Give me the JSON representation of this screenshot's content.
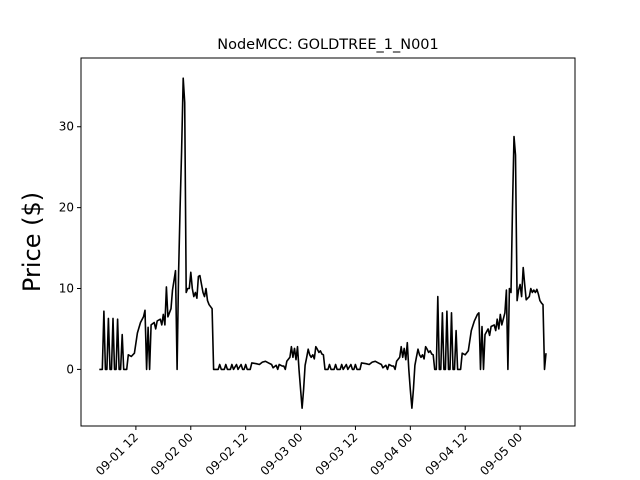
{
  "chart_data": {
    "type": "line",
    "title": "NodeMCC: GOLDTREE_1_N001",
    "xlabel": "",
    "ylabel": "Price ($)",
    "x_axis": {
      "type": "datetime",
      "range": [
        "2021-09-01 00:00",
        "2021-09-05 12:00"
      ],
      "ticks": [
        "2021-09-01 12:00",
        "2021-09-02 00:00",
        "2021-09-02 12:00",
        "2021-09-03 00:00",
        "2021-09-03 12:00",
        "2021-09-04 00:00",
        "2021-09-04 12:00",
        "2021-09-05 00:00"
      ],
      "tick_labels": [
        "09-01 12",
        "09-02 00",
        "09-02 12",
        "09-03 00",
        "09-03 12",
        "09-04 00",
        "09-04 12",
        "09-05 00"
      ],
      "tick_label_rotation": 45
    },
    "y_axis": {
      "range": [
        -7,
        38.5
      ],
      "ticks": [
        0,
        10,
        20,
        30
      ],
      "tick_labels": [
        "0",
        "10",
        "20",
        "30"
      ]
    },
    "grid": false,
    "legend": "none",
    "series": [
      {
        "color": "#000000",
        "points": [
          [
            "2021-09-01 04:00",
            0
          ],
          [
            "2021-09-01 04:20",
            0
          ],
          [
            "2021-09-01 04:40",
            0
          ],
          [
            "2021-09-01 05:00",
            7.2
          ],
          [
            "2021-09-01 05:20",
            0
          ],
          [
            "2021-09-01 05:40",
            0
          ],
          [
            "2021-09-01 06:00",
            6.3
          ],
          [
            "2021-09-01 06:20",
            0
          ],
          [
            "2021-09-01 06:40",
            0
          ],
          [
            "2021-09-01 07:00",
            6.3
          ],
          [
            "2021-09-01 07:20",
            0
          ],
          [
            "2021-09-01 07:40",
            0
          ],
          [
            "2021-09-01 08:00",
            6.2
          ],
          [
            "2021-09-01 08:20",
            0
          ],
          [
            "2021-09-01 08:40",
            0
          ],
          [
            "2021-09-01 09:00",
            4.3
          ],
          [
            "2021-09-01 09:20",
            0
          ],
          [
            "2021-09-01 10:00",
            0
          ],
          [
            "2021-09-01 10:20",
            1.8
          ],
          [
            "2021-09-01 11:00",
            1.6
          ],
          [
            "2021-09-01 11:40",
            2.0
          ],
          [
            "2021-09-01 12:20",
            4.5
          ],
          [
            "2021-09-01 13:00",
            5.8
          ],
          [
            "2021-09-01 13:40",
            6.5
          ],
          [
            "2021-09-01 14:00",
            7.3
          ],
          [
            "2021-09-01 14:20",
            0
          ],
          [
            "2021-09-01 14:40",
            5.2
          ],
          [
            "2021-09-01 15:00",
            0
          ],
          [
            "2021-09-01 15:20",
            5.5
          ],
          [
            "2021-09-01 16:00",
            5.8
          ],
          [
            "2021-09-01 16:20",
            5.0
          ],
          [
            "2021-09-01 16:40",
            6.0
          ],
          [
            "2021-09-01 17:20",
            6.2
          ],
          [
            "2021-09-01 17:40",
            5.5
          ],
          [
            "2021-09-01 18:00",
            6.8
          ],
          [
            "2021-09-01 18:20",
            5.5
          ],
          [
            "2021-09-01 18:40",
            10.2
          ],
          [
            "2021-09-01 19:00",
            6.5
          ],
          [
            "2021-09-01 19:40",
            7.5
          ],
          [
            "2021-09-01 20:00",
            9.8
          ],
          [
            "2021-09-01 20:40",
            12.2
          ],
          [
            "2021-09-01 21:00",
            0
          ],
          [
            "2021-09-01 21:20",
            12.0
          ],
          [
            "2021-09-01 21:40",
            20.0
          ],
          [
            "2021-09-01 22:00",
            27.0
          ],
          [
            "2021-09-01 22:20",
            36.0
          ],
          [
            "2021-09-01 22:40",
            33.0
          ],
          [
            "2021-09-01 23:00",
            9.5
          ],
          [
            "2021-09-01 23:20",
            10.0
          ],
          [
            "2021-09-01 23:40",
            10.0
          ],
          [
            "2021-09-02 00:00",
            12.0
          ],
          [
            "2021-09-02 00:20",
            10.0
          ],
          [
            "2021-09-02 00:40",
            9.0
          ],
          [
            "2021-09-02 01:00",
            9.5
          ],
          [
            "2021-09-02 01:20",
            8.8
          ],
          [
            "2021-09-02 01:40",
            11.5
          ],
          [
            "2021-09-02 02:00",
            11.6
          ],
          [
            "2021-09-02 02:40",
            9.5
          ],
          [
            "2021-09-02 03:00",
            9.0
          ],
          [
            "2021-09-02 03:20",
            10.0
          ],
          [
            "2021-09-02 03:40",
            8.5
          ],
          [
            "2021-09-02 04:00",
            8.0
          ],
          [
            "2021-09-02 04:40",
            7.5
          ],
          [
            "2021-09-02 05:00",
            0
          ],
          [
            "2021-09-02 05:20",
            0
          ],
          [
            "2021-09-02 06:00",
            0
          ],
          [
            "2021-09-02 06:20",
            0.6
          ],
          [
            "2021-09-02 06:40",
            0
          ],
          [
            "2021-09-02 07:20",
            0
          ],
          [
            "2021-09-02 07:40",
            0.6
          ],
          [
            "2021-09-02 08:00",
            0
          ],
          [
            "2021-09-02 08:40",
            0
          ],
          [
            "2021-09-02 09:00",
            0.6
          ],
          [
            "2021-09-02 09:20",
            0
          ],
          [
            "2021-09-02 10:00",
            0.6
          ],
          [
            "2021-09-02 10:20",
            0
          ],
          [
            "2021-09-02 11:00",
            0.6
          ],
          [
            "2021-09-02 11:20",
            0
          ],
          [
            "2021-09-02 11:40",
            0
          ],
          [
            "2021-09-02 12:00",
            0.6
          ],
          [
            "2021-09-02 12:20",
            0
          ],
          [
            "2021-09-02 13:00",
            0
          ],
          [
            "2021-09-02 13:20",
            0.8
          ],
          [
            "2021-09-02 14:20",
            0.7
          ],
          [
            "2021-09-02 15:00",
            0.6
          ],
          [
            "2021-09-02 15:40",
            0.9
          ],
          [
            "2021-09-02 16:20",
            1.0
          ],
          [
            "2021-09-02 17:00",
            0.8
          ],
          [
            "2021-09-02 17:40",
            0.6
          ],
          [
            "2021-09-02 18:00",
            0.2
          ],
          [
            "2021-09-02 18:40",
            0.5
          ],
          [
            "2021-09-02 19:00",
            0
          ],
          [
            "2021-09-02 19:20",
            0.6
          ],
          [
            "2021-09-02 20:00",
            0.4
          ],
          [
            "2021-09-02 20:20",
            0.4
          ],
          [
            "2021-09-02 20:40",
            0
          ],
          [
            "2021-09-02 21:00",
            1.0
          ],
          [
            "2021-09-02 21:40",
            1.5
          ],
          [
            "2021-09-02 22:00",
            2.8
          ],
          [
            "2021-09-02 22:20",
            1.5
          ],
          [
            "2021-09-02 22:40",
            2.6
          ],
          [
            "2021-09-02 23:00",
            1.2
          ],
          [
            "2021-09-02 23:20",
            2.8
          ],
          [
            "2021-09-02 23:40",
            0
          ],
          [
            "2021-09-03 00:00",
            -2.5
          ],
          [
            "2021-09-03 00:20",
            -4.8
          ],
          [
            "2021-09-03 00:40",
            -2.5
          ],
          [
            "2021-09-03 01:00",
            0.5
          ],
          [
            "2021-09-03 01:20",
            1.5
          ],
          [
            "2021-09-03 01:40",
            2.5
          ],
          [
            "2021-09-03 02:00",
            1.8
          ],
          [
            "2021-09-03 02:20",
            1.5
          ],
          [
            "2021-09-03 02:40",
            1.8
          ],
          [
            "2021-09-03 03:00",
            1.3
          ],
          [
            "2021-09-03 03:20",
            2.8
          ],
          [
            "2021-09-03 03:40",
            2.5
          ],
          [
            "2021-09-03 04:00",
            2.1
          ],
          [
            "2021-09-03 04:20",
            2.3
          ],
          [
            "2021-09-03 04:40",
            1.9
          ],
          [
            "2021-09-03 05:00",
            1.8
          ],
          [
            "2021-09-03 05:20",
            0
          ],
          [
            "2021-09-03 06:00",
            0
          ],
          [
            "2021-09-03 06:20",
            0.6
          ],
          [
            "2021-09-03 06:40",
            0
          ],
          [
            "2021-09-03 07:20",
            0
          ],
          [
            "2021-09-03 07:40",
            0.6
          ],
          [
            "2021-09-03 08:00",
            0
          ],
          [
            "2021-09-03 08:40",
            0
          ],
          [
            "2021-09-03 09:00",
            0.6
          ],
          [
            "2021-09-03 09:20",
            0
          ],
          [
            "2021-09-03 10:00",
            0.6
          ],
          [
            "2021-09-03 10:20",
            0
          ],
          [
            "2021-09-03 11:00",
            0.6
          ],
          [
            "2021-09-03 11:20",
            0
          ],
          [
            "2021-09-03 11:40",
            0
          ],
          [
            "2021-09-03 12:00",
            0.6
          ],
          [
            "2021-09-03 12:20",
            0
          ],
          [
            "2021-09-03 13:00",
            0
          ],
          [
            "2021-09-03 13:20",
            0.8
          ],
          [
            "2021-09-03 14:20",
            0.7
          ],
          [
            "2021-09-03 15:00",
            0.6
          ],
          [
            "2021-09-03 15:40",
            0.9
          ],
          [
            "2021-09-03 16:20",
            1.0
          ],
          [
            "2021-09-03 17:00",
            0.8
          ],
          [
            "2021-09-03 17:40",
            0.6
          ],
          [
            "2021-09-03 18:00",
            0.2
          ],
          [
            "2021-09-03 18:40",
            0.5
          ],
          [
            "2021-09-03 19:00",
            0
          ],
          [
            "2021-09-03 19:20",
            0.6
          ],
          [
            "2021-09-03 20:00",
            0.4
          ],
          [
            "2021-09-03 20:20",
            0.4
          ],
          [
            "2021-09-03 20:40",
            0
          ],
          [
            "2021-09-03 21:00",
            1.0
          ],
          [
            "2021-09-03 21:40",
            1.5
          ],
          [
            "2021-09-03 22:00",
            2.8
          ],
          [
            "2021-09-03 22:20",
            1.5
          ],
          [
            "2021-09-03 22:40",
            2.6
          ],
          [
            "2021-09-03 23:00",
            1.2
          ],
          [
            "2021-09-03 23:20",
            3.3
          ],
          [
            "2021-09-03 23:40",
            0
          ],
          [
            "2021-09-04 00:00",
            -2.5
          ],
          [
            "2021-09-04 00:20",
            -4.8
          ],
          [
            "2021-09-04 00:40",
            -2.5
          ],
          [
            "2021-09-04 01:00",
            0.5
          ],
          [
            "2021-09-04 01:20",
            1.5
          ],
          [
            "2021-09-04 01:40",
            2.5
          ],
          [
            "2021-09-04 02:00",
            1.8
          ],
          [
            "2021-09-04 02:20",
            1.5
          ],
          [
            "2021-09-04 02:40",
            1.8
          ],
          [
            "2021-09-04 03:00",
            1.3
          ],
          [
            "2021-09-04 03:20",
            2.8
          ],
          [
            "2021-09-04 03:40",
            2.5
          ],
          [
            "2021-09-04 04:00",
            2.1
          ],
          [
            "2021-09-04 04:20",
            2.3
          ],
          [
            "2021-09-04 04:40",
            1.9
          ],
          [
            "2021-09-04 05:00",
            1.8
          ],
          [
            "2021-09-04 05:20",
            0
          ],
          [
            "2021-09-04 05:40",
            0
          ],
          [
            "2021-09-04 06:00",
            9.0
          ],
          [
            "2021-09-04 06:20",
            0
          ],
          [
            "2021-09-04 06:40",
            0
          ],
          [
            "2021-09-04 07:00",
            7.0
          ],
          [
            "2021-09-04 07:20",
            0
          ],
          [
            "2021-09-04 07:40",
            0
          ],
          [
            "2021-09-04 08:00",
            7.2
          ],
          [
            "2021-09-04 08:20",
            0
          ],
          [
            "2021-09-04 08:40",
            0
          ],
          [
            "2021-09-04 09:00",
            7.0
          ],
          [
            "2021-09-04 09:20",
            0
          ],
          [
            "2021-09-04 09:40",
            0
          ],
          [
            "2021-09-04 10:00",
            4.8
          ],
          [
            "2021-09-04 10:20",
            0
          ],
          [
            "2021-09-04 11:00",
            0
          ],
          [
            "2021-09-04 11:20",
            2.0
          ],
          [
            "2021-09-04 12:00",
            1.8
          ],
          [
            "2021-09-04 12:40",
            2.3
          ],
          [
            "2021-09-04 13:20",
            4.8
          ],
          [
            "2021-09-04 14:00",
            6.0
          ],
          [
            "2021-09-04 14:40",
            6.8
          ],
          [
            "2021-09-04 15:00",
            7.0
          ],
          [
            "2021-09-04 15:20",
            0
          ],
          [
            "2021-09-04 15:40",
            5.3
          ],
          [
            "2021-09-04 16:00",
            0
          ],
          [
            "2021-09-04 16:20",
            4.3
          ],
          [
            "2021-09-04 17:00",
            5.0
          ],
          [
            "2021-09-04 17:20",
            4.2
          ],
          [
            "2021-09-04 17:40",
            5.3
          ],
          [
            "2021-09-04 18:20",
            5.5
          ],
          [
            "2021-09-04 18:40",
            4.8
          ],
          [
            "2021-09-04 19:00",
            6.2
          ],
          [
            "2021-09-04 19:20",
            5.0
          ],
          [
            "2021-09-04 19:40",
            6.8
          ],
          [
            "2021-09-04 20:00",
            5.5
          ],
          [
            "2021-09-04 20:40",
            7.0
          ],
          [
            "2021-09-04 21:00",
            9.8
          ],
          [
            "2021-09-04 21:20",
            0
          ],
          [
            "2021-09-04 21:40",
            10.0
          ],
          [
            "2021-09-04 22:00",
            9.5
          ],
          [
            "2021-09-04 22:20",
            20.0
          ],
          [
            "2021-09-04 22:40",
            28.8
          ],
          [
            "2021-09-04 23:00",
            26.5
          ],
          [
            "2021-09-04 23:20",
            8.5
          ],
          [
            "2021-09-04 23:40",
            9.8
          ],
          [
            "2021-09-05 00:00",
            10.5
          ],
          [
            "2021-09-05 00:20",
            9.0
          ],
          [
            "2021-09-05 00:40",
            12.6
          ],
          [
            "2021-09-05 01:00",
            10.5
          ],
          [
            "2021-09-05 01:20",
            8.6
          ],
          [
            "2021-09-05 01:40",
            8.8
          ],
          [
            "2021-09-05 02:00",
            9.0
          ],
          [
            "2021-09-05 02:20",
            10.0
          ],
          [
            "2021-09-05 02:40",
            9.5
          ],
          [
            "2021-09-05 03:00",
            9.8
          ],
          [
            "2021-09-05 03:20",
            9.5
          ],
          [
            "2021-09-05 03:40",
            9.9
          ],
          [
            "2021-09-05 04:00",
            9.3
          ],
          [
            "2021-09-05 04:20",
            8.5
          ],
          [
            "2021-09-05 04:40",
            8.2
          ],
          [
            "2021-09-05 05:00",
            8.0
          ],
          [
            "2021-09-05 05:20",
            0
          ],
          [
            "2021-09-05 05:40",
            2.0
          ]
        ]
      }
    ]
  }
}
